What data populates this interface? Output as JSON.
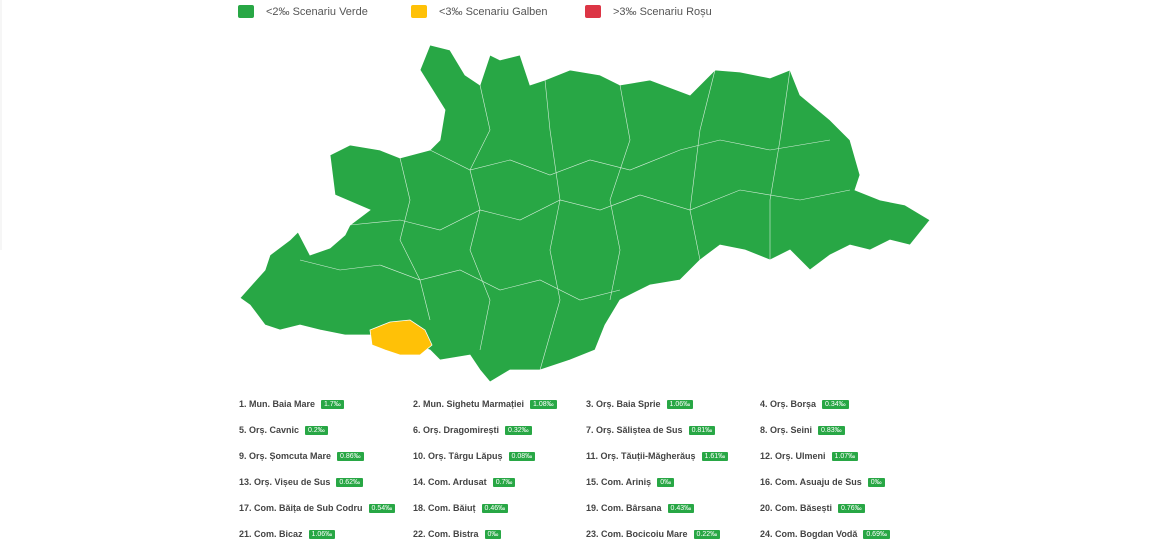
{
  "legend": [
    {
      "label": "<2‰ Scenariu Verde",
      "color": "#28a745"
    },
    {
      "label": "<3‰ Scenariu Galben",
      "color": "#ffc107"
    },
    {
      "label": ">3‰ Scenariu Roșu",
      "color": "#dc3545"
    }
  ],
  "items": [
    {
      "name": "1. Mun. Baia Mare",
      "rate": "1.7‰"
    },
    {
      "name": "2. Mun. Sighetu Marmației",
      "rate": "1.08‰"
    },
    {
      "name": "3. Orș. Baia Sprie",
      "rate": "1.06‰"
    },
    {
      "name": "4. Orș. Borșa",
      "rate": "0.34‰"
    },
    {
      "name": "5. Orș. Cavnic",
      "rate": "0.2‰"
    },
    {
      "name": "6. Orș. Dragomirești",
      "rate": "0.32‰"
    },
    {
      "name": "7. Orș. Săliștea de Sus",
      "rate": "0.81‰"
    },
    {
      "name": "8. Orș. Seini",
      "rate": "0.83‰"
    },
    {
      "name": "9. Orș. Șomcuta Mare",
      "rate": "0.86‰"
    },
    {
      "name": "10. Orș. Târgu Lăpuș",
      "rate": "0.08‰"
    },
    {
      "name": "11. Orș. Tăuții-Măgherăuș",
      "rate": "1.61‰"
    },
    {
      "name": "12. Orș. Ulmeni",
      "rate": "1.07‰"
    },
    {
      "name": "13. Orș. Vișeu de Sus",
      "rate": "0.62‰"
    },
    {
      "name": "14. Com. Ardusat",
      "rate": "0.7‰"
    },
    {
      "name": "15. Com. Ariniș",
      "rate": "0‰"
    },
    {
      "name": "16. Com. Asuaju de Sus",
      "rate": "0‰"
    },
    {
      "name": "17. Com. Băița de Sub Codru",
      "rate": "0.54‰"
    },
    {
      "name": "18. Com. Băiuț",
      "rate": "0.46‰"
    },
    {
      "name": "19. Com. Bârsana",
      "rate": "0.43‰"
    },
    {
      "name": "20. Com. Băsești",
      "rate": "0.76‰"
    },
    {
      "name": "21. Com. Bicaz",
      "rate": "1.06‰"
    },
    {
      "name": "22. Com. Bistra",
      "rate": "0‰"
    },
    {
      "name": "23. Com. Bocicoiu Mare",
      "rate": "0.22‰"
    },
    {
      "name": "24. Com. Bogdan Vodă",
      "rate": "0.69‰"
    }
  ]
}
